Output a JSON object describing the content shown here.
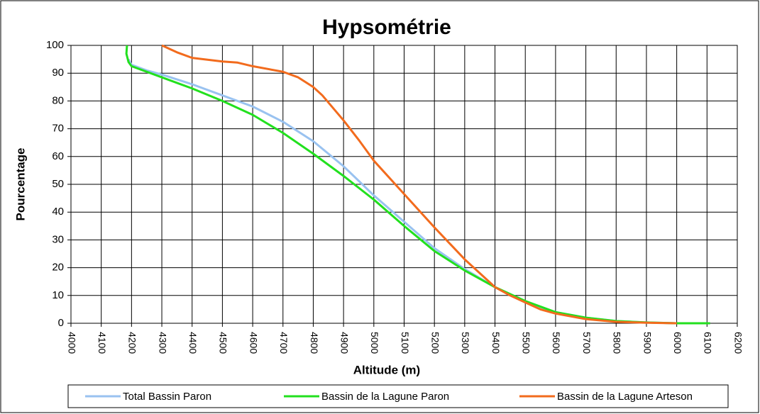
{
  "chart_data": {
    "type": "line",
    "title": "Hypsométrie",
    "x_label": "Altitude (m)",
    "y_label": "Pourcentage",
    "xlim": [
      4000,
      6200
    ],
    "xticks": [
      4000,
      4100,
      4200,
      4300,
      4400,
      4500,
      4600,
      4700,
      4800,
      4900,
      5000,
      5100,
      5200,
      5300,
      5400,
      5500,
      5600,
      5700,
      5800,
      5900,
      6000,
      6100,
      6200
    ],
    "ylim": [
      0,
      100
    ],
    "yticks": [
      0,
      10,
      20,
      30,
      40,
      50,
      60,
      70,
      80,
      90,
      100
    ],
    "grid": true,
    "legend": "bottom",
    "series": [
      {
        "name": "Total Bassin Paron",
        "color": "#99c2f0",
        "x": [
          4190,
          4200,
          4250,
          4300,
          4400,
          4500,
          4600,
          4700,
          4800,
          4900,
          5000,
          5100,
          5200,
          5300,
          5400,
          5500,
          5600,
          5700,
          5800,
          5900,
          6000,
          6100
        ],
        "values": [
          95,
          93,
          91,
          89.5,
          86,
          82,
          78,
          72.5,
          65.5,
          56.5,
          46,
          36.5,
          27,
          19.5,
          13,
          7.5,
          4,
          2,
          0.8,
          0.3,
          0,
          0
        ]
      },
      {
        "name": "Bassin de la Lagune Paron",
        "color": "#22e01e",
        "x": [
          4185,
          4183,
          4190,
          4200,
          4300,
          4400,
          4500,
          4600,
          4700,
          4800,
          4900,
          5000,
          5100,
          5200,
          5300,
          5400,
          5500,
          5600,
          5700,
          5800,
          5900,
          6000,
          6110
        ],
        "values": [
          100,
          97,
          94,
          92.5,
          88.5,
          84.5,
          80,
          75,
          68.5,
          61,
          53,
          44.5,
          35,
          26,
          19,
          13,
          8,
          4,
          2,
          0.8,
          0.3,
          0,
          0
        ]
      },
      {
        "name": "Bassin de la Lagune Arteson",
        "color": "#f26b1d",
        "x": [
          4300,
          4350,
          4400,
          4500,
          4550,
          4600,
          4700,
          4750,
          4800,
          4830,
          4900,
          4950,
          5000,
          5100,
          5200,
          5300,
          5400,
          5450,
          5500,
          5550,
          5600,
          5700,
          5800,
          5900,
          6000
        ],
        "values": [
          100,
          97.5,
          95.5,
          94.2,
          93.8,
          92.5,
          90.5,
          88.5,
          85,
          82,
          73,
          66,
          58.5,
          46.5,
          34.5,
          23,
          13,
          10,
          7.5,
          5,
          3.5,
          1.5,
          0.5,
          0.2,
          0
        ]
      }
    ]
  }
}
